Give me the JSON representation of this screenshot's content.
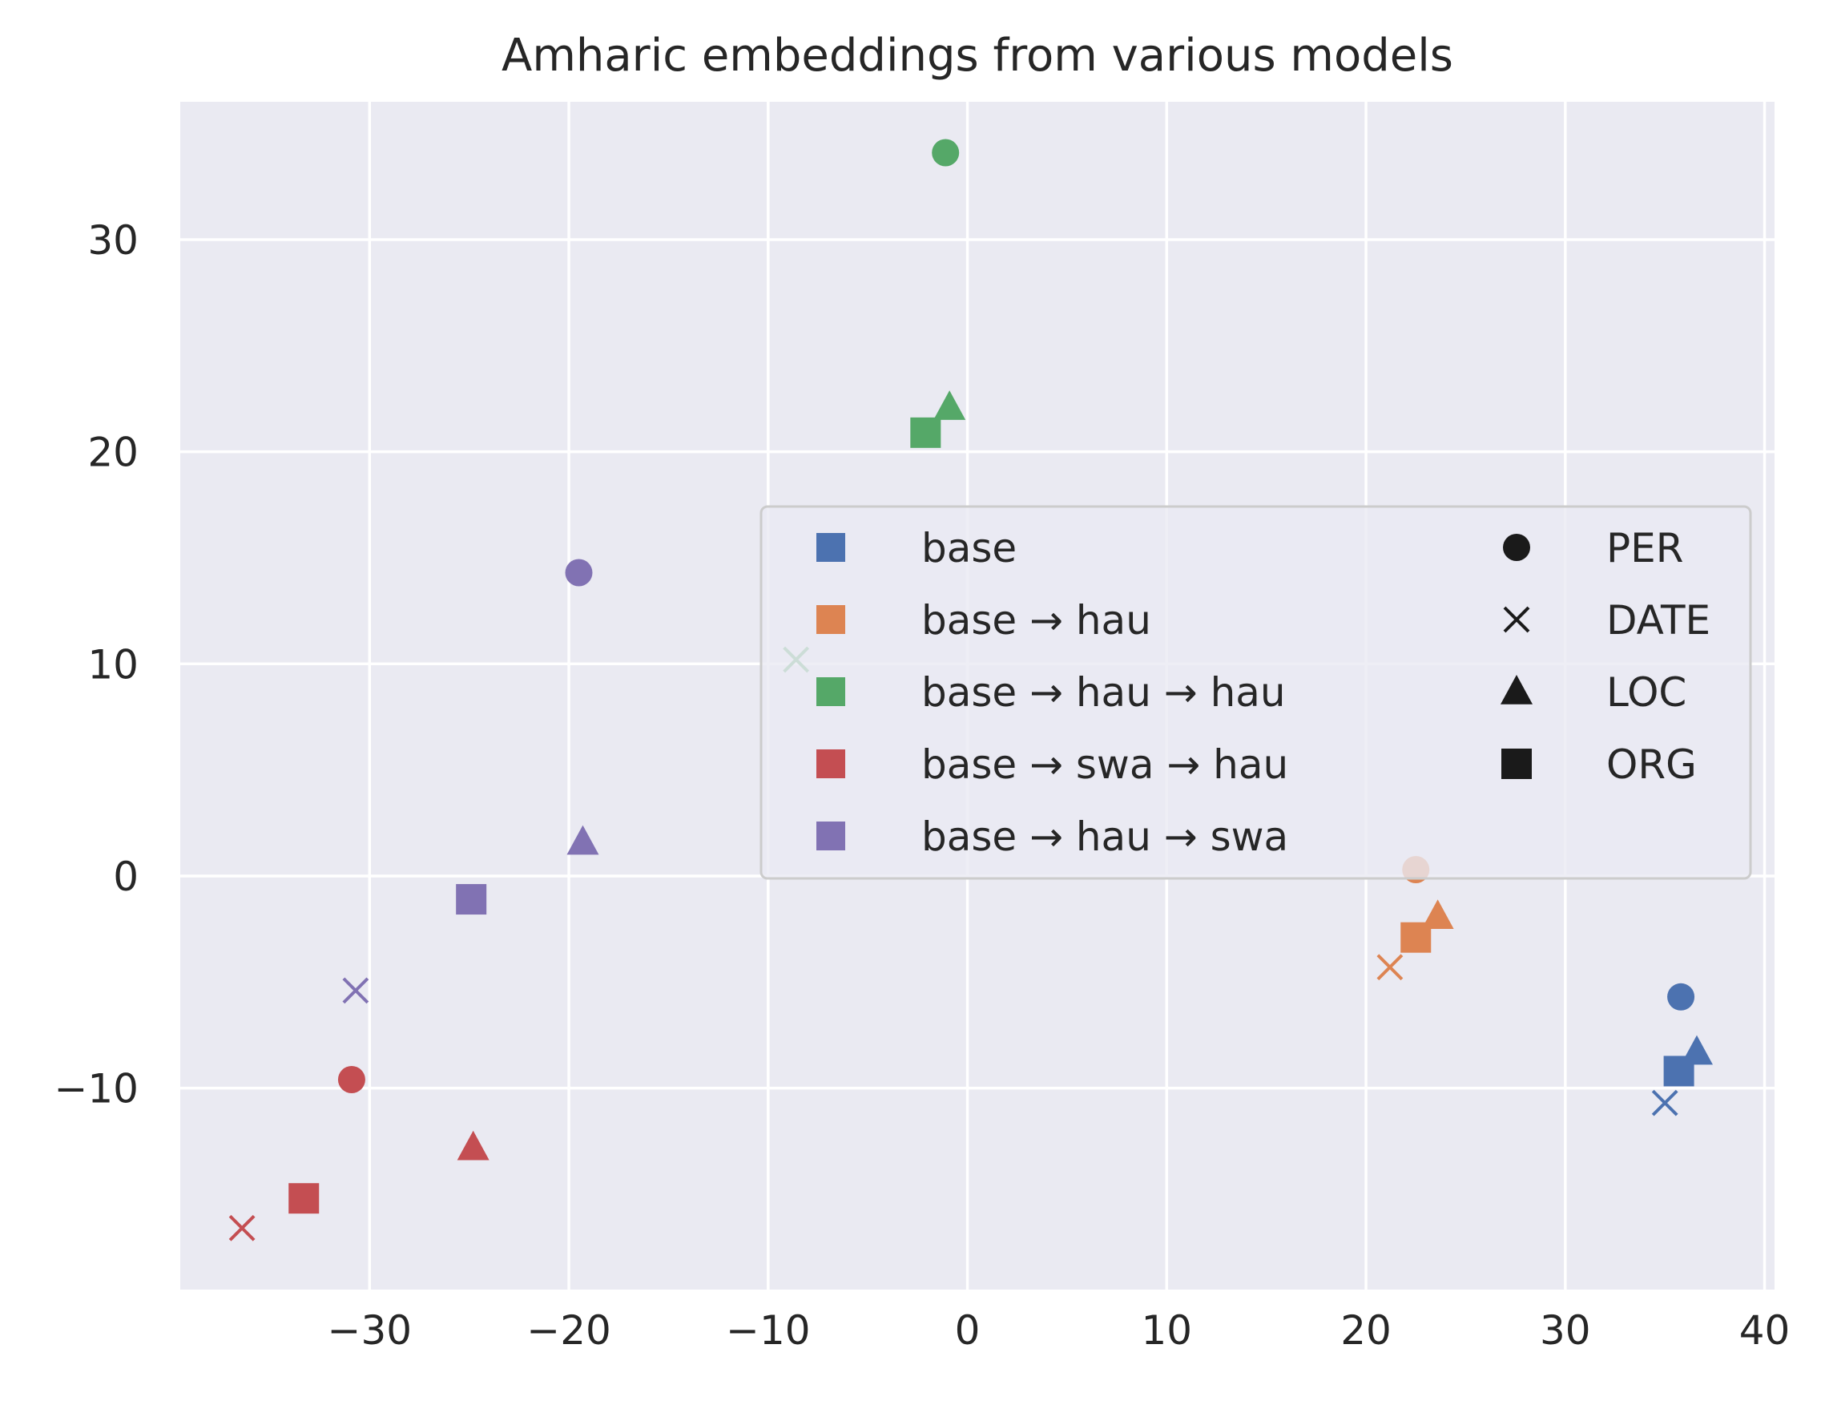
{
  "chart_data": {
    "type": "scatter",
    "title": "Amharic embeddings from various models",
    "xlabel": "",
    "ylabel": "",
    "xlim": [
      -39.5,
      40.5
    ],
    "ylim": [
      -19.5,
      36.5
    ],
    "xticks": [
      -30,
      -20,
      -10,
      0,
      10,
      20,
      30,
      40
    ],
    "yticks": [
      -10,
      0,
      10,
      20,
      30
    ],
    "xtick_labels": [
      "−30",
      "−20",
      "−10",
      "0",
      "10",
      "20",
      "30",
      "40"
    ],
    "ytick_labels": [
      "−10",
      "0",
      "10",
      "20",
      "30"
    ],
    "grid": true,
    "legend_placement": "center-right",
    "series": [
      {
        "name": "base",
        "color": "#4c72b0",
        "points": [
          {
            "label": "PER",
            "x": 35.8,
            "y": -5.7
          },
          {
            "label": "DATE",
            "x": 35.0,
            "y": -10.7
          },
          {
            "label": "LOC",
            "x": 36.6,
            "y": -8.3
          },
          {
            "label": "ORG",
            "x": 35.7,
            "y": -9.2
          }
        ]
      },
      {
        "name": "base → hau",
        "color": "#dd8452",
        "points": [
          {
            "label": "PER",
            "x": 22.5,
            "y": 0.3
          },
          {
            "label": "DATE",
            "x": 21.2,
            "y": -4.3
          },
          {
            "label": "LOC",
            "x": 23.6,
            "y": -1.9
          },
          {
            "label": "ORG",
            "x": 22.5,
            "y": -2.9
          }
        ]
      },
      {
        "name": "base → hau → hau",
        "color": "#55a868",
        "points": [
          {
            "label": "PER",
            "x": -1.1,
            "y": 34.1
          },
          {
            "label": "DATE",
            "x": -8.6,
            "y": 10.2
          },
          {
            "label": "LOC",
            "x": -0.9,
            "y": 22.1
          },
          {
            "label": "ORG",
            "x": -2.1,
            "y": 20.9
          }
        ]
      },
      {
        "name": "base → swa → hau",
        "color": "#c44e52",
        "points": [
          {
            "label": "PER",
            "x": -30.9,
            "y": -9.6
          },
          {
            "label": "DATE",
            "x": -36.4,
            "y": -16.6
          },
          {
            "label": "LOC",
            "x": -24.8,
            "y": -12.8
          },
          {
            "label": "ORG",
            "x": -33.3,
            "y": -15.2
          }
        ]
      },
      {
        "name": "base → hau → swa",
        "color": "#8172b3",
        "points": [
          {
            "label": "PER",
            "x": -19.5,
            "y": 14.3
          },
          {
            "label": "DATE",
            "x": -30.7,
            "y": -5.4
          },
          {
            "label": "LOC",
            "x": -19.3,
            "y": 1.6
          },
          {
            "label": "ORG",
            "x": -24.9,
            "y": -1.1
          }
        ]
      }
    ],
    "marker_legend": [
      {
        "label": "PER",
        "marker": "circle"
      },
      {
        "label": "DATE",
        "marker": "x"
      },
      {
        "label": "LOC",
        "marker": "triangle"
      },
      {
        "label": "ORG",
        "marker": "square"
      }
    ]
  }
}
